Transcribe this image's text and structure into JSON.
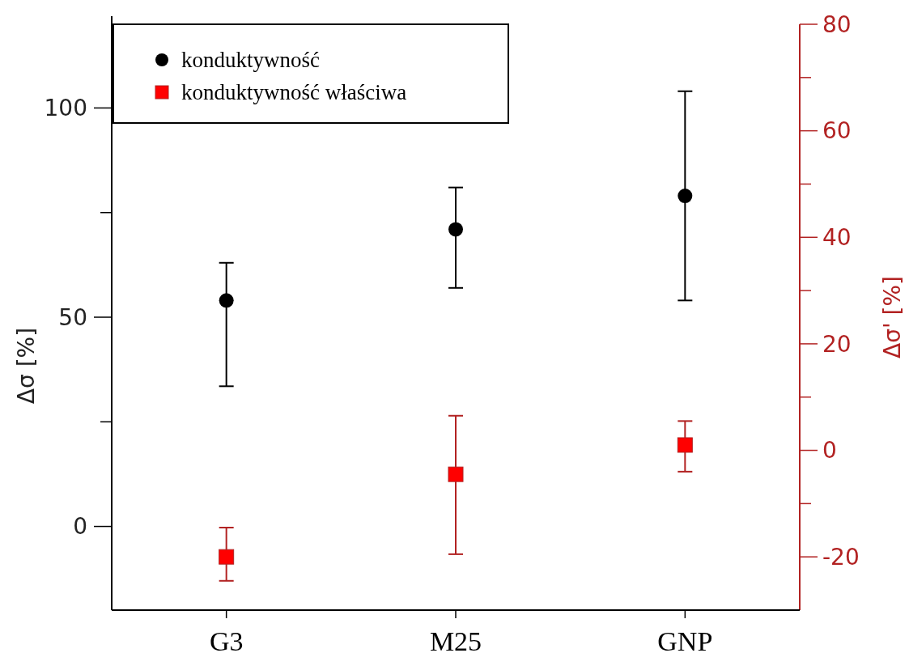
{
  "chart_data": {
    "type": "scatter",
    "ylabel": "Δσ [%]",
    "y2label": "Δσ' [%]",
    "categories": [
      "G3",
      "M25",
      "GNP"
    ],
    "ylim": [
      -20,
      120
    ],
    "yticks": [
      0,
      {
        "value": 25,
        "label": null
      },
      50,
      {
        "value": 75,
        "label": null
      },
      100
    ],
    "y2lim": [
      -30,
      80
    ],
    "y2ticks": [
      -20,
      {
        "value": -10,
        "label": null
      },
      0,
      {
        "value": 10,
        "label": null
      },
      20,
      {
        "value": 30,
        "label": null
      },
      40,
      {
        "value": 50,
        "label": null
      },
      60,
      {
        "value": 70,
        "label": null
      },
      80
    ],
    "legend": "top left",
    "grid": false,
    "series": [
      {
        "name": "konduktywność",
        "color": "#000000",
        "marker": "circle",
        "values": [
          54,
          71,
          79
        ],
        "errors": [
          [
            33.5,
            63
          ],
          [
            57,
            81
          ],
          [
            54,
            104
          ]
        ]
      },
      {
        "name": "konduktywność właściwa",
        "color": "#ff0000",
        "marker": "square",
        "axis": "y2",
        "values": [
          -20,
          -4.5,
          1
        ],
        "errors": [
          [
            -24.5,
            -14.5
          ],
          [
            -19.5,
            6.5
          ],
          [
            -4,
            5.5
          ]
        ]
      }
    ]
  }
}
